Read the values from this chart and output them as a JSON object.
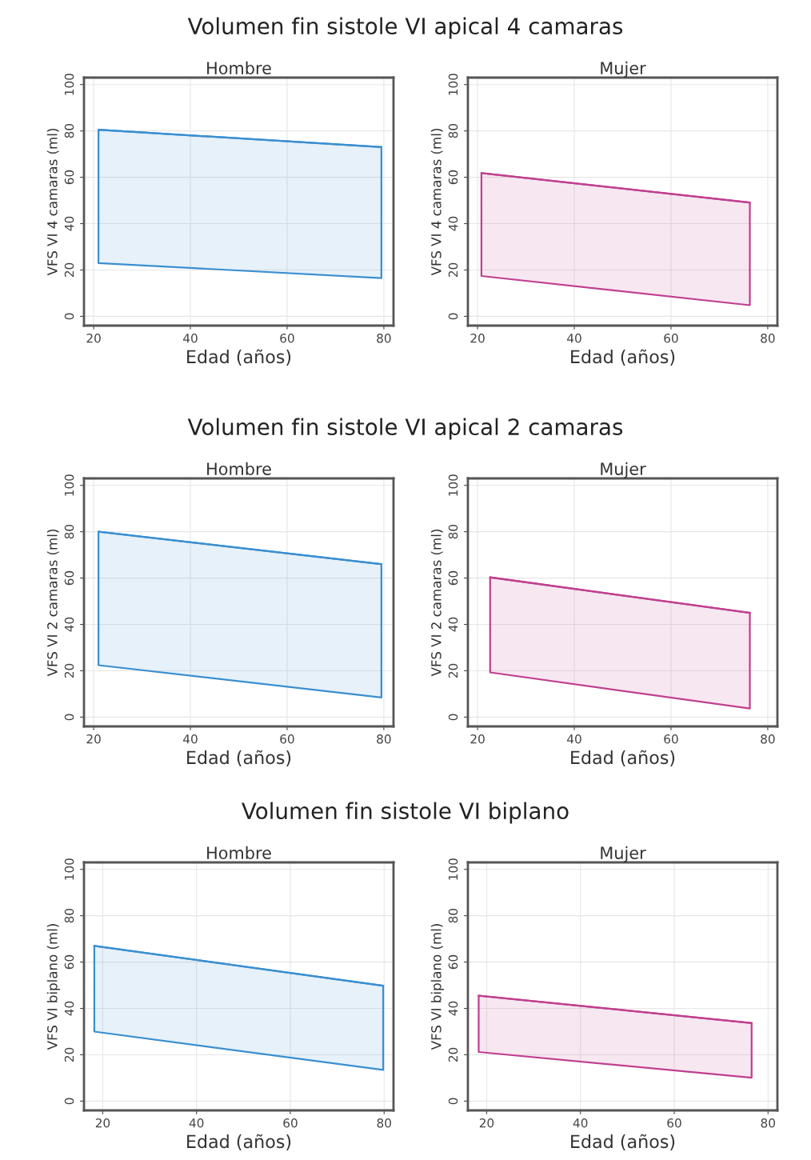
{
  "chart_data": [
    {
      "type": "line",
      "title": "Volumen fin sistole VI apical 4 camaras",
      "subtitle": "Hombre",
      "xlabel": "Edad (años)",
      "ylabel": "VFS VI 4 camaras (ml)",
      "xlim": [
        18,
        82
      ],
      "ylim": [
        -4,
        103
      ],
      "xticks": [
        20,
        40,
        60,
        80
      ],
      "yticks": [
        0,
        20,
        40,
        60,
        80,
        100
      ],
      "grid": true,
      "series": [
        {
          "color": "#3a8fd0",
          "x": [
            21,
            79.5
          ],
          "values": [
            80.5,
            73
          ],
          "lower": [
            23,
            16.5
          ],
          "upper": [
            80.5,
            73
          ]
        }
      ]
    },
    {
      "type": "line",
      "subtitle": "Mujer",
      "xlabel": "Edad (años)",
      "ylabel": "VFS VI 4 camaras (ml)",
      "xlim": [
        18,
        82
      ],
      "ylim": [
        -4,
        103
      ],
      "xticks": [
        20,
        40,
        60,
        80
      ],
      "yticks": [
        0,
        20,
        40,
        60,
        80,
        100
      ],
      "grid": true,
      "series": [
        {
          "color": "#c0408f",
          "x": [
            20.8,
            76.3
          ],
          "values": [
            61.8,
            49.1
          ],
          "lower": [
            17.4,
            4.8
          ],
          "upper": [
            61.8,
            49.1
          ]
        }
      ]
    },
    {
      "type": "line",
      "title": "Volumen fin sistole VI apical 2 camaras",
      "subtitle": "Hombre",
      "xlabel": "Edad (años)",
      "ylabel": "VFS VI 2 camaras (ml)",
      "xlim": [
        18,
        82
      ],
      "ylim": [
        -4,
        103
      ],
      "xticks": [
        20,
        40,
        60,
        80
      ],
      "yticks": [
        0,
        20,
        40,
        60,
        80,
        100
      ],
      "grid": true,
      "series": [
        {
          "color": "#3a8fd0",
          "x": [
            21,
            79.5
          ],
          "values": [
            80,
            66
          ],
          "lower": [
            22.4,
            8.5
          ],
          "upper": [
            80,
            66
          ]
        }
      ]
    },
    {
      "type": "line",
      "subtitle": "Mujer",
      "xlabel": "Edad (años)",
      "ylabel": "VFS VI 2 camaras (ml)",
      "xlim": [
        18,
        82
      ],
      "ylim": [
        -4,
        103
      ],
      "xticks": [
        20,
        40,
        60,
        80
      ],
      "yticks": [
        0,
        20,
        40,
        60,
        80,
        100
      ],
      "grid": true,
      "series": [
        {
          "color": "#c0408f",
          "x": [
            22.6,
            76.3
          ],
          "values": [
            60.3,
            45
          ],
          "lower": [
            19.3,
            3.7
          ],
          "upper": [
            60.3,
            45
          ]
        }
      ]
    },
    {
      "type": "line",
      "title": "Volumen fin sistole VI biplano",
      "subtitle": "Hombre",
      "xlabel": "Edad (años)",
      "ylabel": "VFS VI biplano (ml)",
      "xlim": [
        16,
        82
      ],
      "ylim": [
        -4,
        103
      ],
      "xticks": [
        20,
        40,
        60,
        80
      ],
      "yticks": [
        0,
        20,
        40,
        60,
        80,
        100
      ],
      "grid": true,
      "series": [
        {
          "color": "#3a8fd0",
          "x": [
            18.2,
            79.8
          ],
          "values": [
            67,
            49.8
          ],
          "lower": [
            30,
            13.5
          ],
          "upper": [
            67,
            49.8
          ]
        }
      ]
    },
    {
      "type": "line",
      "subtitle": "Mujer",
      "xlabel": "Edad (años)",
      "ylabel": "VFS VI biplano (ml)",
      "xlim": [
        16,
        82
      ],
      "ylim": [
        -4,
        103
      ],
      "xticks": [
        20,
        40,
        60,
        80
      ],
      "yticks": [
        0,
        20,
        40,
        60,
        80,
        100
      ],
      "grid": true,
      "series": [
        {
          "color": "#c0408f",
          "x": [
            18.3,
            76.5
          ],
          "values": [
            45.5,
            33.7
          ],
          "lower": [
            21.2,
            10.1
          ],
          "upper": [
            45.5,
            33.7
          ]
        }
      ]
    }
  ]
}
